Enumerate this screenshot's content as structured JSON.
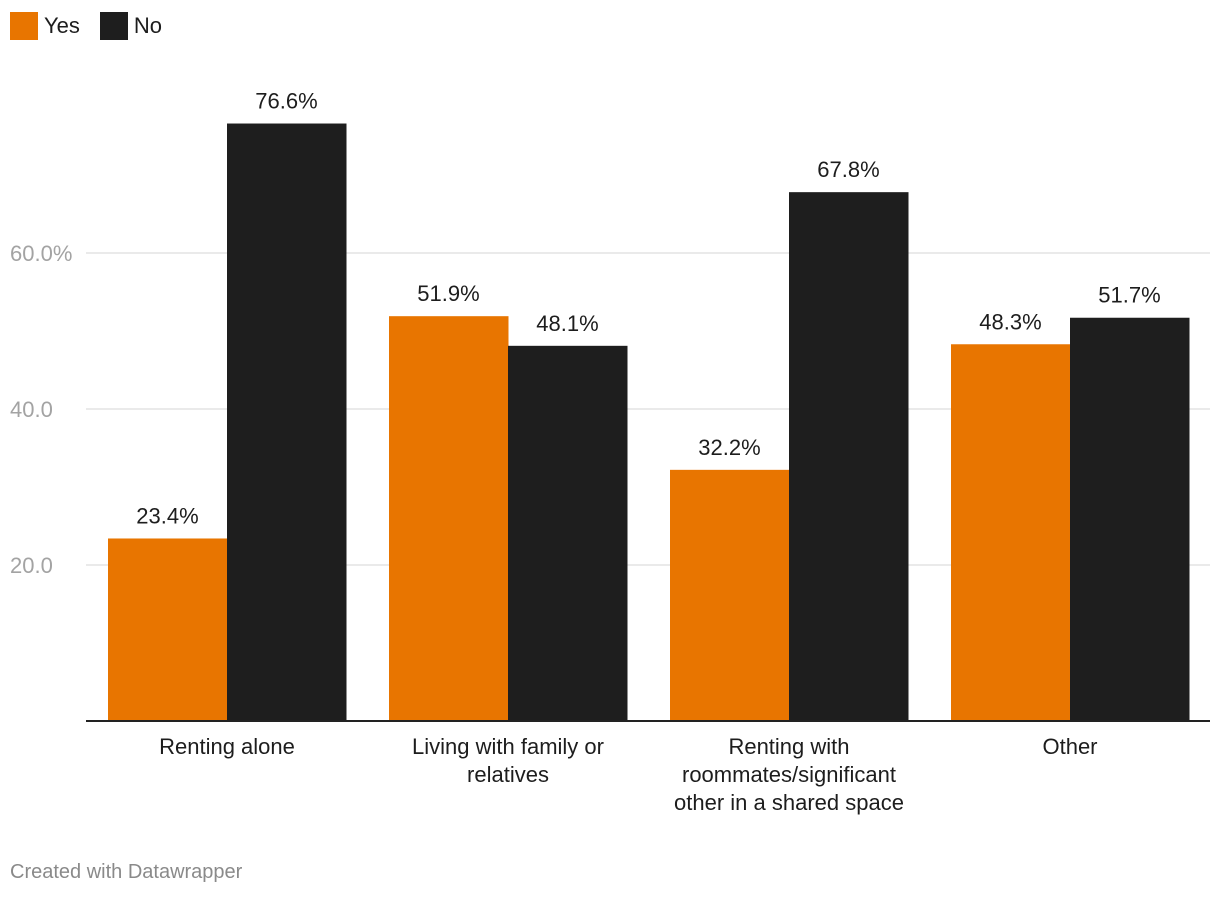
{
  "legend": {
    "items": [
      {
        "label": "Yes",
        "color": "#e87500"
      },
      {
        "label": "No",
        "color": "#1e1e1e"
      }
    ]
  },
  "footer": {
    "credit": "Created with Datawrapper"
  },
  "chart_data": {
    "type": "bar",
    "title": "",
    "xlabel": "",
    "ylabel": "",
    "ylim": [
      0,
      80
    ],
    "yticks": [
      20,
      40,
      60
    ],
    "ytick_labels": [
      "20.0",
      "40.0",
      "60.0%"
    ],
    "grid": true,
    "legend_position": "top-left",
    "categories": [
      "Renting alone",
      "Living with family or relatives",
      "Renting with roommates/significant other in a shared space",
      "Other"
    ],
    "series": [
      {
        "name": "Yes",
        "color": "#e87500",
        "values": [
          23.4,
          51.9,
          32.2,
          48.3
        ],
        "labels": [
          "23.4%",
          "51.9%",
          "32.2%",
          "48.3%"
        ]
      },
      {
        "name": "No",
        "color": "#1e1e1e",
        "values": [
          76.6,
          48.1,
          67.8,
          51.7
        ],
        "labels": [
          "76.6%",
          "48.1%",
          "67.8%",
          "51.7%"
        ]
      }
    ]
  }
}
